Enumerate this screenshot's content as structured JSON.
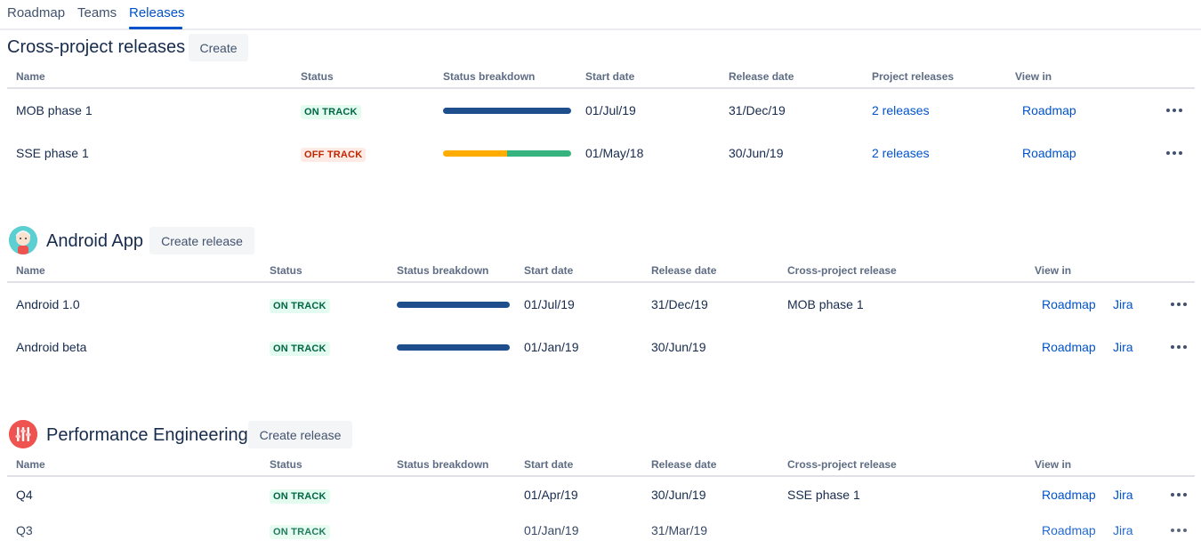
{
  "tabs": [
    {
      "label": "Roadmap"
    },
    {
      "label": "Teams"
    },
    {
      "label": "Releases"
    }
  ],
  "cross_project": {
    "title": "Cross-project releases",
    "create_label": "Create",
    "headers": [
      "Name",
      "Status",
      "Status breakdown",
      "Start date",
      "Release date",
      "Project releases",
      "View in"
    ],
    "rows": [
      {
        "name": "MOB phase 1",
        "status": "ON TRACK",
        "start": "01/Jul/19",
        "release": "31/Dec/19",
        "project_releases": "2 releases",
        "view": "Roadmap"
      },
      {
        "name": "SSE phase 1",
        "status": "OFF TRACK",
        "start": "01/May/18",
        "release": "30/Jun/19",
        "project_releases": "2 releases",
        "view": "Roadmap"
      }
    ]
  },
  "android": {
    "title": "Android App",
    "create_label": "Create release",
    "headers": [
      "Name",
      "Status",
      "Status breakdown",
      "Start date",
      "Release date",
      "Cross-project release",
      "View in"
    ],
    "rows": [
      {
        "name": "Android 1.0",
        "status": "ON TRACK",
        "start": "01/Jul/19",
        "release": "31/Dec/19",
        "cross": "MOB phase 1",
        "view_roadmap": "Roadmap",
        "view_jira": "Jira"
      },
      {
        "name": "Android beta",
        "status": "ON TRACK",
        "start": "01/Jan/19",
        "release": "30/Jun/19",
        "cross": "",
        "view_roadmap": "Roadmap",
        "view_jira": "Jira"
      }
    ]
  },
  "perf": {
    "title": "Performance Engineering",
    "create_label": "Create release",
    "headers": [
      "Name",
      "Status",
      "Status breakdown",
      "Start date",
      "Release date",
      "Cross-project release",
      "View in"
    ],
    "rows": [
      {
        "name": "Q4",
        "status": "ON TRACK",
        "start": "01/Apr/19",
        "release": "30/Jun/19",
        "cross": "SSE phase 1",
        "view_roadmap": "Roadmap",
        "view_jira": "Jira"
      },
      {
        "name": "Q3",
        "status": "ON TRACK",
        "start": "01/Jan/19",
        "release": "31/Mar/19",
        "cross": "",
        "view_roadmap": "Roadmap",
        "view_jira": "Jira"
      }
    ]
  },
  "colors": {
    "accent": "#0052cc",
    "done": "#1f4e8c",
    "in_progress": "#ffab00",
    "complete_green": "#36b37e",
    "on_track_bg": "#e3fcef",
    "off_track_bg": "#ffebe6"
  }
}
